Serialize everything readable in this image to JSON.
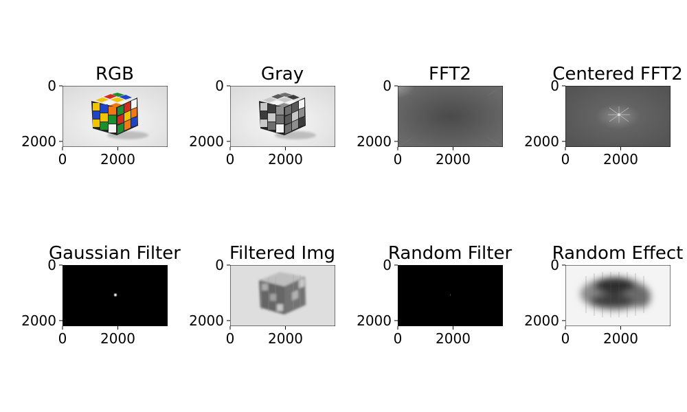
{
  "chart_data": {
    "type": "image-grid",
    "rows": 2,
    "cols": 4,
    "xlim": [
      0,
      3800
    ],
    "ylim": [
      2200,
      0
    ],
    "xticks": [
      0,
      2000
    ],
    "yticks": [
      0,
      2000
    ],
    "panels": [
      {
        "title": "RGB",
        "content": "rubiks-cube-color"
      },
      {
        "title": "Gray",
        "content": "rubiks-cube-grayscale"
      },
      {
        "title": "FFT2",
        "content": "fft-magnitude-uncentered"
      },
      {
        "title": "Centered FFT2",
        "content": "fft-magnitude-centered"
      },
      {
        "title": "Gaussian Filter",
        "content": "gaussian-mask-dot"
      },
      {
        "title": "Filtered Img",
        "content": "blurred-cube"
      },
      {
        "title": "Random Filter",
        "content": "random-mask-dot"
      },
      {
        "title": "Random Effect",
        "content": "random-effect-smear"
      }
    ]
  }
}
